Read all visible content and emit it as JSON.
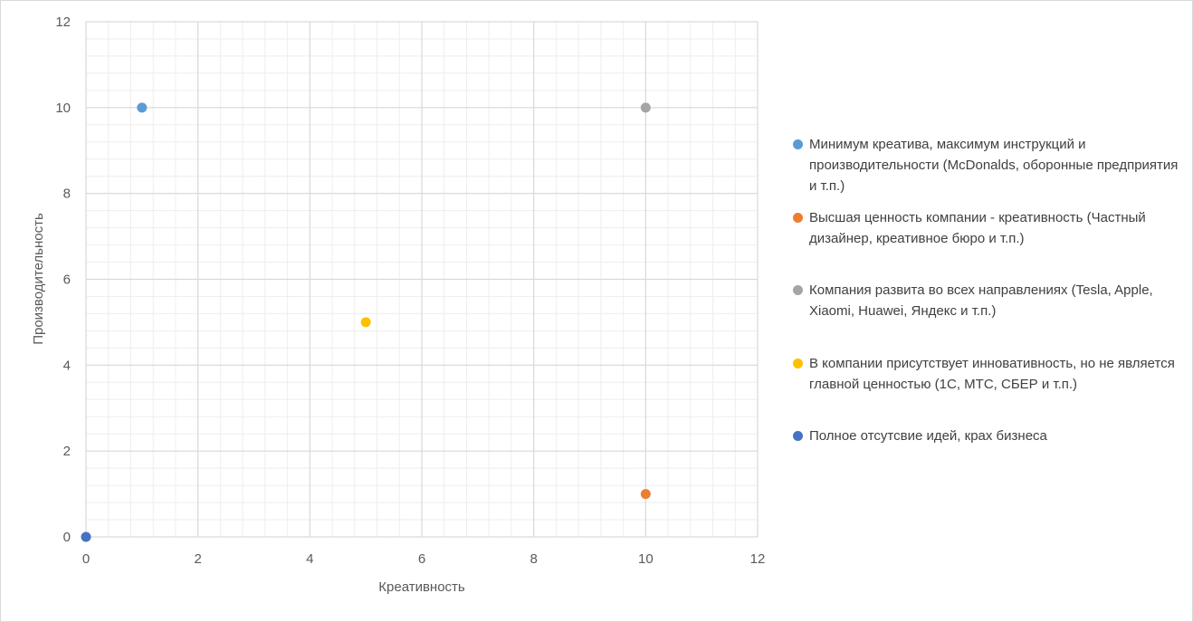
{
  "chart_data": {
    "type": "scatter",
    "title": "",
    "xlabel": "Креативность",
    "ylabel": "Производительность",
    "xlim": [
      0,
      12
    ],
    "ylim": [
      0,
      12
    ],
    "xticks": [
      0,
      2,
      4,
      6,
      8,
      10,
      12
    ],
    "yticks": [
      0,
      2,
      4,
      6,
      8,
      10,
      12
    ],
    "grid": true,
    "legend_position": "right",
    "series": [
      {
        "name": "Минимум креатива, максимум инструкций и производительности (McDonalds, оборонные предприятия и т.п.)",
        "color": "#5b9bd5",
        "x": [
          1
        ],
        "y": [
          10
        ]
      },
      {
        "name": "Высшая ценность компании - креативность (Частный дизайнер, креативное бюро и т.п.)",
        "color": "#ed7d31",
        "x": [
          10
        ],
        "y": [
          1
        ]
      },
      {
        "name": "Компания развита во всех направлениях (Tesla, Apple, Xiaomi, Huawei, Яндекс и т.п.)",
        "color": "#a5a5a5",
        "x": [
          10
        ],
        "y": [
          10
        ]
      },
      {
        "name": "В компании присутствует инновативность, но не является главной ценностью (1С, МТС, СБЕР и т.п.)",
        "color": "#ffc000",
        "x": [
          5
        ],
        "y": [
          5
        ]
      },
      {
        "name": "Полное отсутсвие идей, крах бизнеса",
        "color": "#4472c4",
        "x": [
          0
        ],
        "y": [
          0
        ]
      }
    ]
  }
}
